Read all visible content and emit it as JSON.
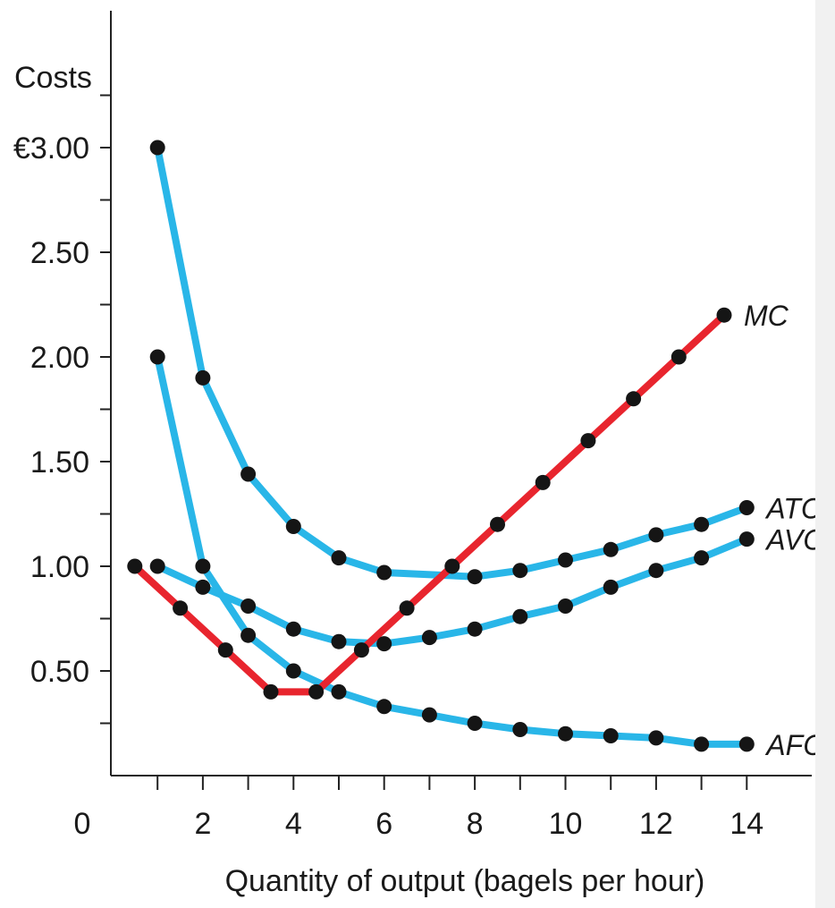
{
  "chart_data": {
    "type": "line",
    "ylabel": "Costs",
    "xlabel": "Quantity of output (bagels per hour)",
    "xlim": [
      0,
      15
    ],
    "ylim": [
      0,
      3.5
    ],
    "x_ticks": [
      2,
      4,
      6,
      8,
      10,
      12,
      14
    ],
    "x_tick_labels": [
      "2",
      "4",
      "6",
      "8",
      "10",
      "12",
      "14"
    ],
    "origin_label": "0",
    "y_ticks": [
      0.5,
      1.0,
      1.5,
      2.0,
      2.5,
      3.0
    ],
    "y_tick_labels": [
      "0.50",
      "1.00",
      "1.50",
      "2.00",
      "2.50",
      "€3.00"
    ],
    "grid": false,
    "legend": "labels at line ends",
    "series": [
      {
        "name": "ATC",
        "color": "#29b6e8",
        "x": [
          1,
          2,
          3,
          4,
          5,
          6,
          7,
          8,
          9,
          10,
          11,
          12,
          13,
          14
        ],
        "y": [
          3.0,
          1.9,
          1.44,
          1.19,
          1.04,
          0.97,
          null,
          0.95,
          0.98,
          1.03,
          1.08,
          1.15,
          1.2,
          1.28
        ]
      },
      {
        "name": "AVC",
        "color": "#29b6e8",
        "x": [
          1,
          2,
          3,
          4,
          5,
          6,
          7,
          8,
          9,
          10,
          11,
          12,
          13,
          14
        ],
        "y": [
          1.0,
          0.9,
          0.81,
          0.7,
          0.64,
          0.63,
          0.66,
          0.7,
          0.76,
          0.81,
          0.9,
          0.98,
          1.04,
          1.13
        ]
      },
      {
        "name": "AFC",
        "color": "#29b6e8",
        "x": [
          1,
          2,
          3,
          4,
          5,
          6,
          7,
          8,
          9,
          10,
          11,
          12,
          13,
          14
        ],
        "y": [
          2.0,
          1.0,
          0.67,
          0.5,
          0.4,
          0.33,
          0.29,
          0.25,
          0.22,
          0.2,
          0.19,
          0.18,
          0.15,
          0.15
        ]
      },
      {
        "name": "MC",
        "color": "#e8252e",
        "x": [
          0.5,
          1.5,
          2.5,
          3.5,
          4.5,
          5.5,
          6.5,
          7.5,
          8.5,
          9.5,
          10.5,
          11.5,
          12.5,
          13.5
        ],
        "y": [
          1.0,
          0.8,
          0.6,
          0.4,
          0.4,
          0.6,
          0.8,
          1.0,
          1.2,
          1.4,
          1.6,
          1.8,
          2.0,
          2.2
        ]
      }
    ]
  }
}
